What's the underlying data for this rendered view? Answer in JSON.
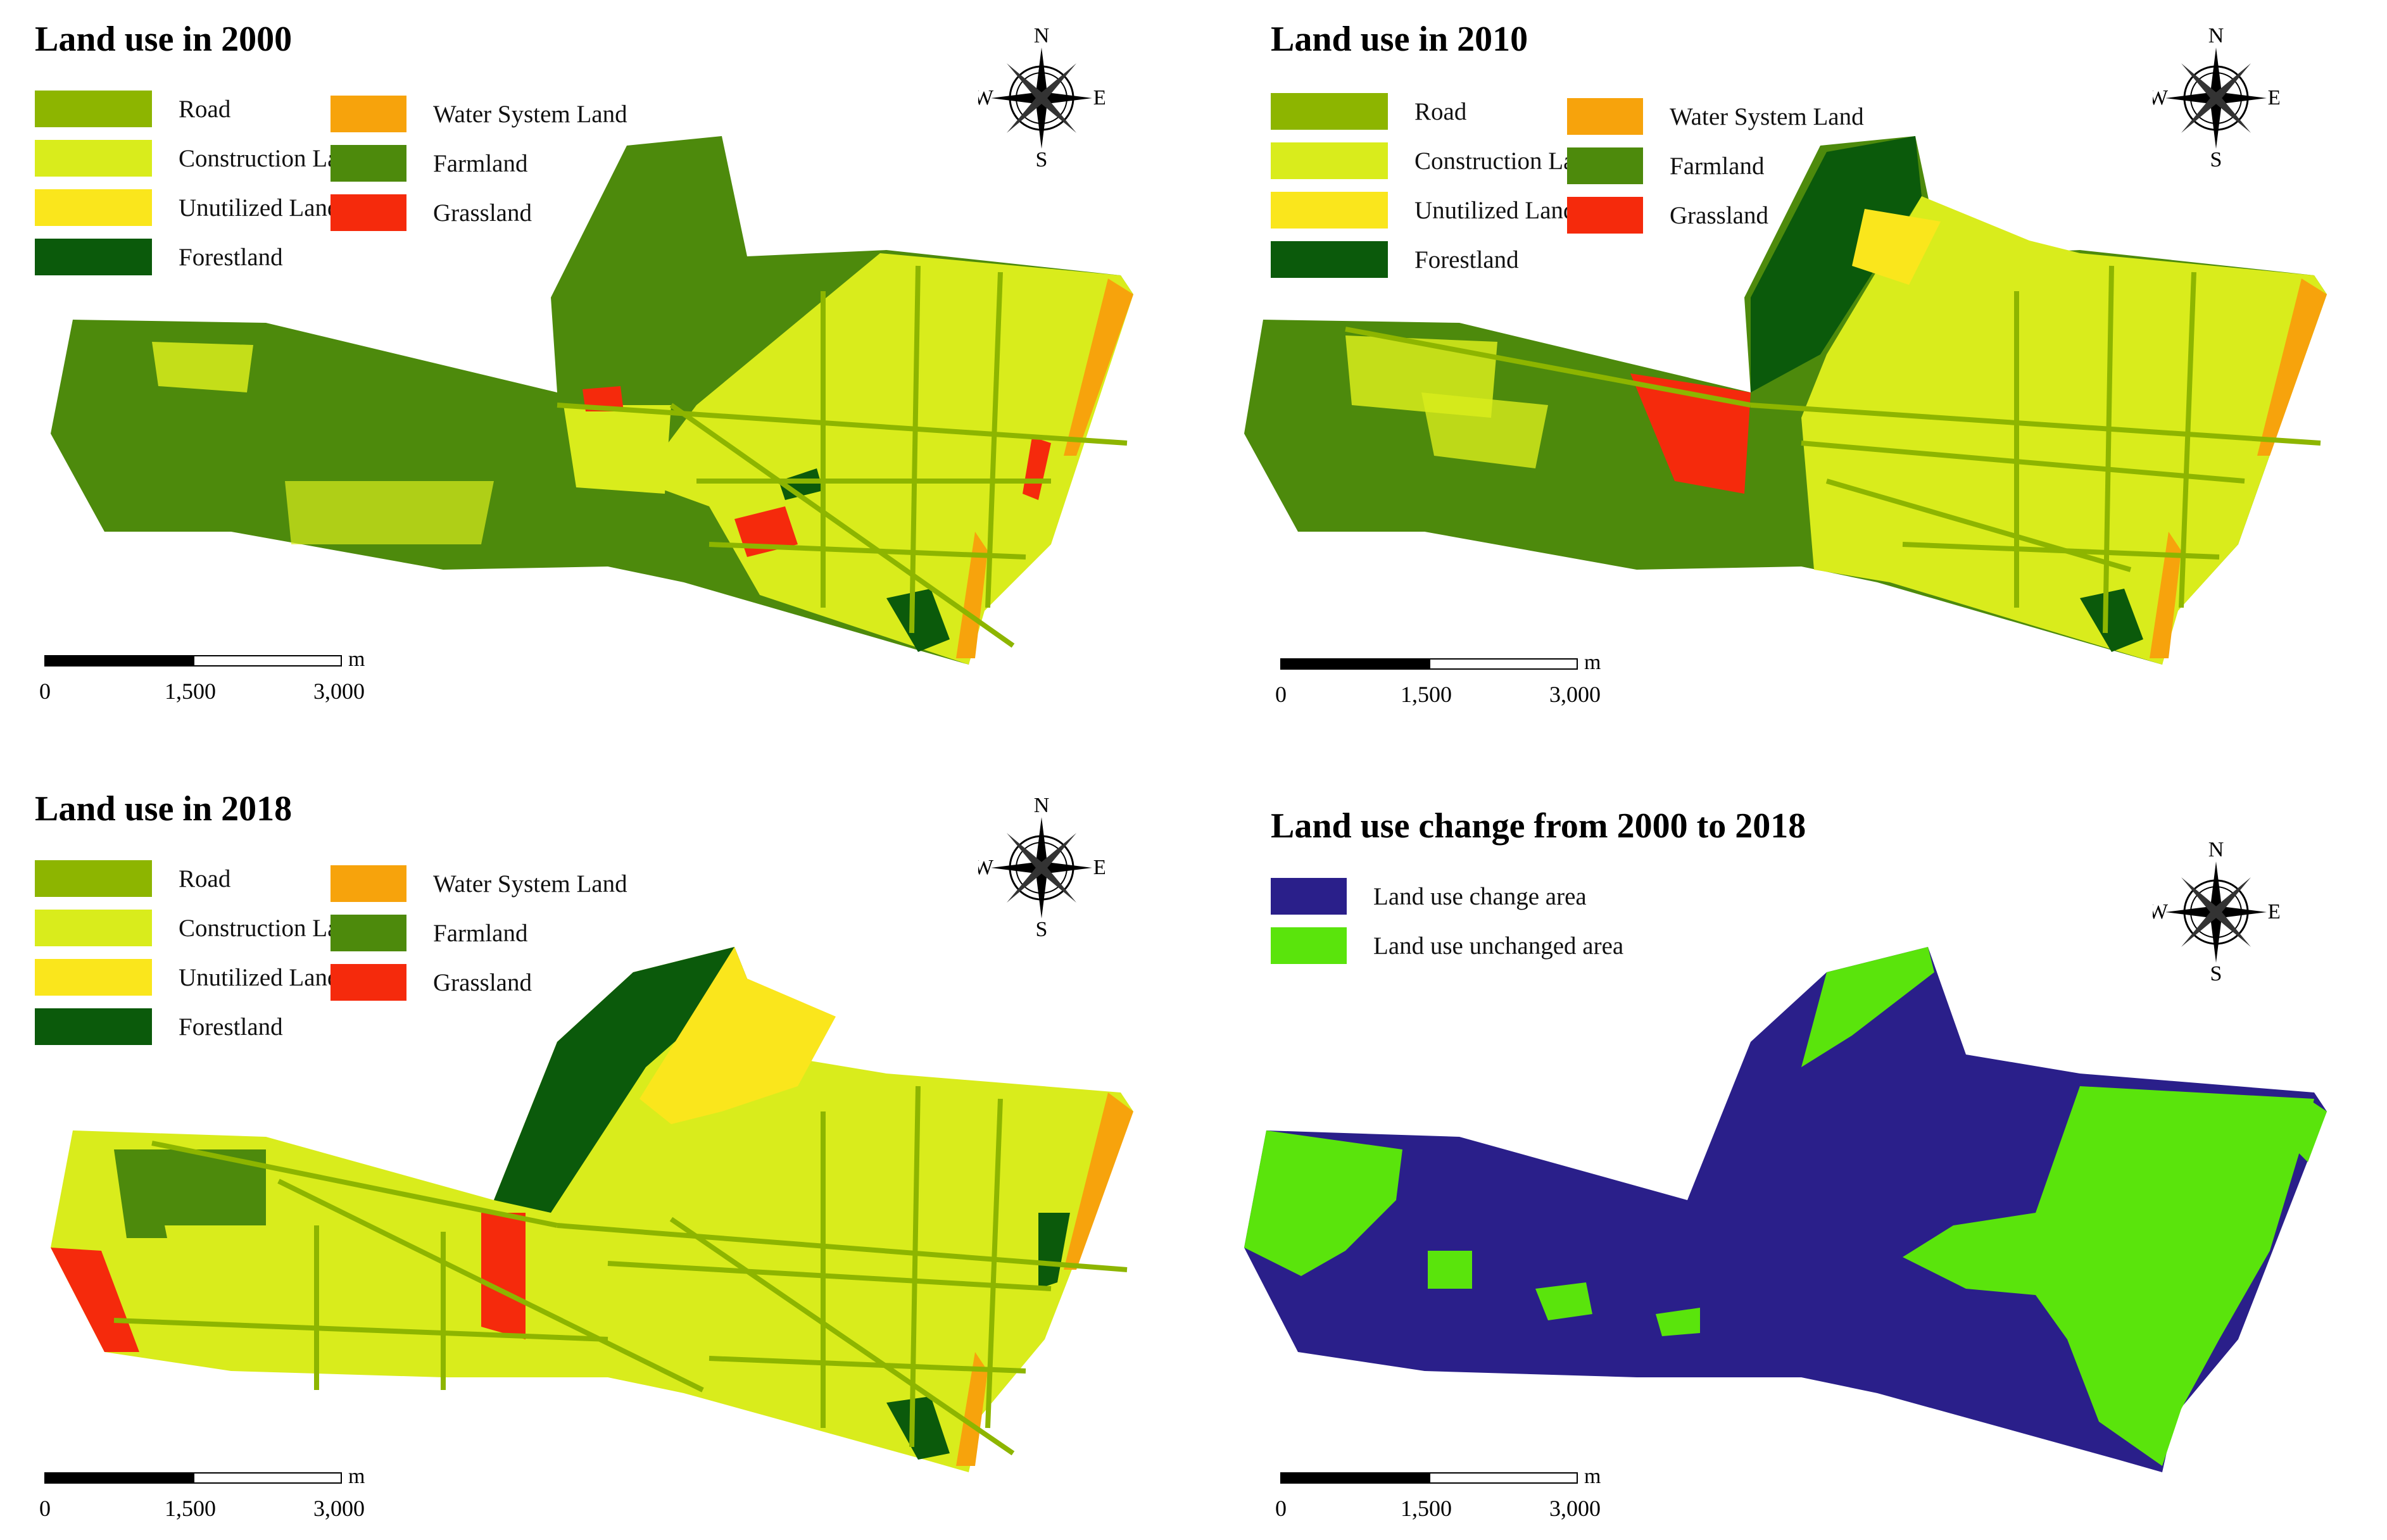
{
  "colors": {
    "road": "#8db500",
    "construction": "#d9ec1c",
    "unutilized": "#fae61c",
    "forestland": "#0b5a0b",
    "water": "#f7a30c",
    "farmland": "#4d8a0c",
    "grassland": "#f52a0c",
    "change": "#2a1f8a",
    "unchanged": "#5ae40c"
  },
  "compass": {
    "n": "N",
    "s": "S",
    "e": "E",
    "w": "W"
  },
  "scale": {
    "unit": "m",
    "ticks": [
      "0",
      "1,500",
      "3,000"
    ]
  },
  "panels": [
    {
      "title": "Land use in 2000",
      "legend_left": [
        {
          "label": "Road",
          "color": "road"
        },
        {
          "label": "Construction Land",
          "color": "construction"
        },
        {
          "label": "Unutilized Land",
          "color": "unutilized"
        },
        {
          "label": "Forestland",
          "color": "forestland"
        }
      ],
      "legend_right": [
        {
          "label": "Water System Land",
          "color": "water"
        },
        {
          "label": "Farmland",
          "color": "farmland"
        },
        {
          "label": "Grassland",
          "color": "grassland"
        }
      ]
    },
    {
      "title": "Land use in 2010",
      "legend_left": [
        {
          "label": "Road",
          "color": "road"
        },
        {
          "label": "Construction Land",
          "color": "construction"
        },
        {
          "label": "Unutilized Land",
          "color": "unutilized"
        },
        {
          "label": "Forestland",
          "color": "forestland"
        }
      ],
      "legend_right": [
        {
          "label": "Water System Land",
          "color": "water"
        },
        {
          "label": "Farmland",
          "color": "farmland"
        },
        {
          "label": "Grassland",
          "color": "grassland"
        }
      ]
    },
    {
      "title": "Land use in 2018",
      "legend_left": [
        {
          "label": "Road",
          "color": "road"
        },
        {
          "label": "Construction Land",
          "color": "construction"
        },
        {
          "label": "Unutilized Land",
          "color": "unutilized"
        },
        {
          "label": "Forestland",
          "color": "forestland"
        }
      ],
      "legend_right": [
        {
          "label": "Water System Land",
          "color": "water"
        },
        {
          "label": "Farmland",
          "color": "farmland"
        },
        {
          "label": "Grassland",
          "color": "grassland"
        }
      ]
    },
    {
      "title": "Land use change from 2000 to 2018",
      "legend_left": [
        {
          "label": "Land use change area",
          "color": "change"
        },
        {
          "label": "Land use unchanged area",
          "color": "unchanged"
        }
      ],
      "legend_right": []
    }
  ]
}
